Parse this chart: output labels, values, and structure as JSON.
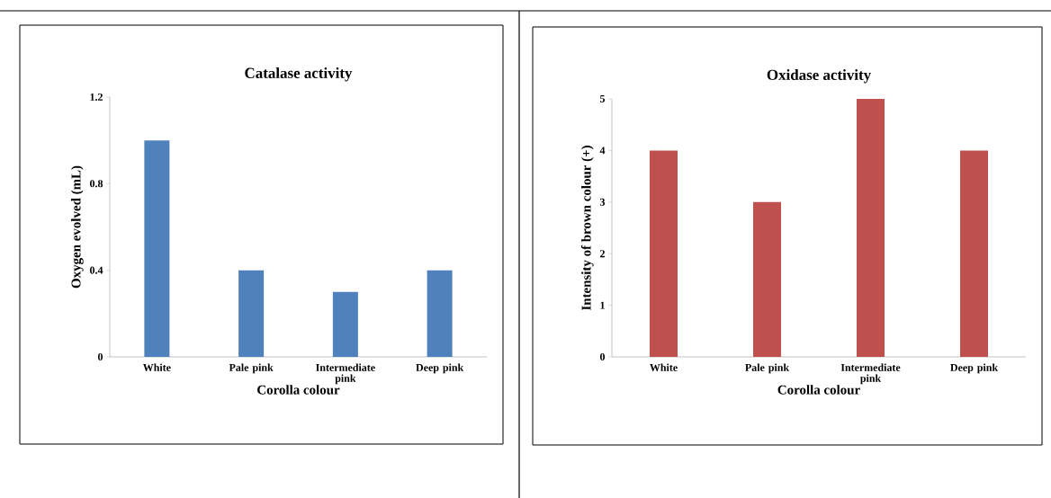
{
  "chart_data": [
    {
      "type": "bar",
      "title": "Catalase activity",
      "xlabel": "Corolla colour",
      "ylabel": "Oxygen evolved (mL)",
      "categories": [
        "White",
        "Pale pink",
        "Intermediate pink",
        "Deep pink"
      ],
      "values": [
        1.0,
        0.4,
        0.3,
        0.4
      ],
      "color": "#4f81bd",
      "ylim": [
        0,
        1.2
      ],
      "yticks": [
        0,
        0.4,
        0.8,
        1.2
      ]
    },
    {
      "type": "bar",
      "title": "Oxidase activity",
      "xlabel": "Corolla colour",
      "ylabel": "Intensity of brown colour (+)",
      "categories": [
        "White",
        "Pale pink",
        "Intermediate pink",
        "Deep pink"
      ],
      "values": [
        4,
        3,
        5,
        4
      ],
      "color": "#c0504d",
      "ylim": [
        0,
        5
      ],
      "yticks": [
        0,
        1,
        2,
        3,
        4,
        5
      ]
    }
  ]
}
